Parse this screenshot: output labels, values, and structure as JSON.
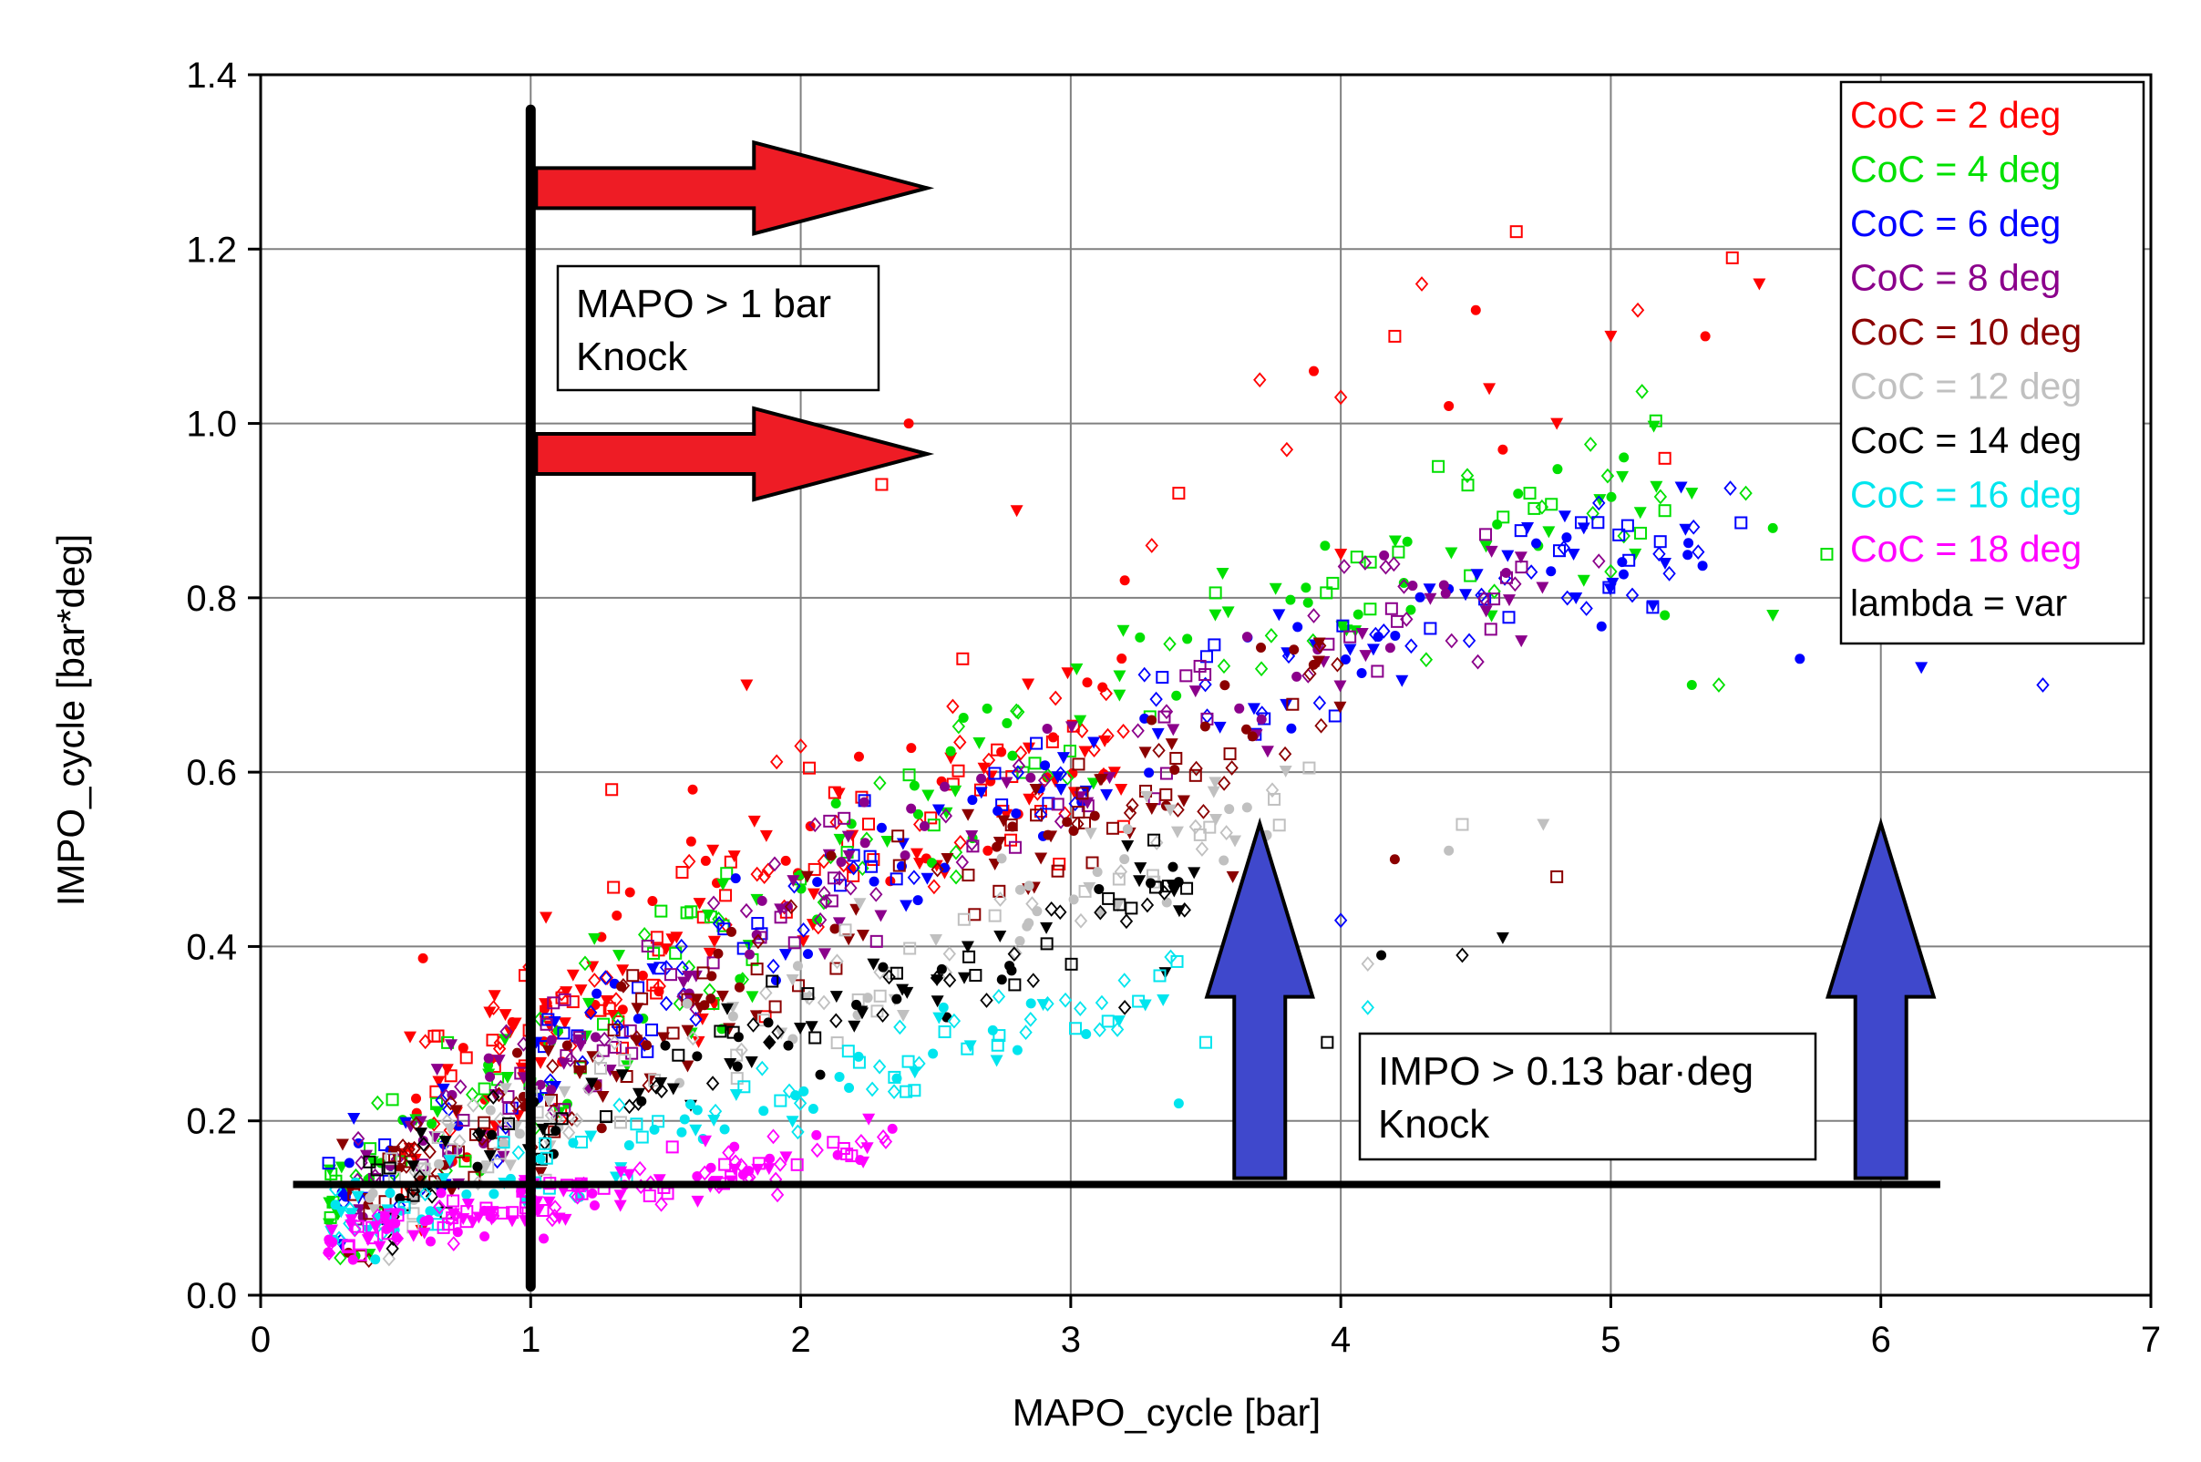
{
  "chart_data": {
    "type": "scatter",
    "xlabel": "MAPO_cycle [bar]",
    "ylabel": "IMPO_cycle [bar*deg]",
    "xlim": [
      0,
      7
    ],
    "ylim": [
      0,
      1.4
    ],
    "xticks": [
      "0",
      "1",
      "2",
      "3",
      "4",
      "5",
      "6",
      "7"
    ],
    "yticks": [
      "0.0",
      "0.2",
      "0.4",
      "0.6",
      "0.8",
      "1.0",
      "1.2",
      "1.4"
    ],
    "grid": true,
    "legend_position": "top-right",
    "series": [
      {
        "name": "CoC = 2 deg",
        "color": "#ff0000",
        "seed": 11,
        "n": 210,
        "points": [
          [
            2.4,
            1.0
          ],
          [
            3.4,
            0.92
          ],
          [
            4.0,
            0.85
          ],
          [
            4.3,
            1.16
          ],
          [
            4.5,
            1.13
          ],
          [
            4.65,
            1.22
          ],
          [
            5.0,
            1.1
          ],
          [
            5.1,
            1.13
          ],
          [
            5.35,
            1.1
          ],
          [
            5.45,
            1.19
          ],
          [
            5.55,
            1.16
          ],
          [
            3.7,
            1.05
          ],
          [
            3.9,
            1.06
          ],
          [
            4.2,
            1.1
          ],
          [
            4.55,
            1.04
          ],
          [
            4.0,
            1.03
          ],
          [
            4.4,
            1.02
          ],
          [
            5.2,
            0.96
          ],
          [
            4.8,
            1.0
          ],
          [
            3.8,
            0.97
          ],
          [
            4.6,
            0.97
          ],
          [
            2.3,
            0.93
          ],
          [
            2.8,
            0.9
          ],
          [
            3.3,
            0.86
          ],
          [
            3.2,
            0.82
          ],
          [
            2.6,
            0.73
          ],
          [
            1.8,
            0.7
          ],
          [
            2.0,
            0.63
          ],
          [
            1.6,
            0.58
          ],
          [
            1.3,
            0.58
          ]
        ]
      },
      {
        "name": "CoC = 4 deg",
        "color": "#00e000",
        "seed": 22,
        "n": 200,
        "points": [
          [
            5.2,
            0.9
          ],
          [
            5.3,
            0.92
          ],
          [
            5.5,
            0.92
          ],
          [
            5.6,
            0.88
          ],
          [
            5.8,
            0.85
          ],
          [
            5.6,
            0.78
          ],
          [
            5.4,
            0.7
          ],
          [
            5.3,
            0.7
          ],
          [
            4.7,
            0.92
          ],
          [
            4.9,
            0.82
          ],
          [
            5.0,
            0.83
          ],
          [
            5.2,
            0.78
          ]
        ]
      },
      {
        "name": "CoC = 6 deg",
        "color": "#0000ff",
        "seed": 33,
        "n": 200,
        "points": [
          [
            6.15,
            0.72
          ],
          [
            6.6,
            0.7
          ],
          [
            5.7,
            0.73
          ],
          [
            5.9,
            0.82
          ],
          [
            4.9,
            0.88
          ],
          [
            4.0,
            0.43
          ],
          [
            4.4,
            0.81
          ]
        ]
      },
      {
        "name": "CoC = 8 deg",
        "color": "#8b008b",
        "seed": 44,
        "n": 190,
        "points": []
      },
      {
        "name": "CoC = 10 deg",
        "color": "#8b0000",
        "seed": 55,
        "n": 170,
        "points": [
          [
            4.2,
            0.5
          ],
          [
            4.8,
            0.48
          ],
          [
            3.6,
            0.48
          ]
        ]
      },
      {
        "name": "CoC = 12 deg",
        "color": "#c0c0c0",
        "seed": 66,
        "n": 140,
        "points": [
          [
            4.45,
            0.54
          ],
          [
            4.75,
            0.54
          ],
          [
            4.1,
            0.38
          ],
          [
            4.4,
            0.51
          ]
        ]
      },
      {
        "name": "CoC = 14 deg",
        "color": "#000000",
        "seed": 77,
        "n": 130,
        "points": [
          [
            4.6,
            0.41
          ],
          [
            4.45,
            0.39
          ],
          [
            4.15,
            0.39
          ],
          [
            3.95,
            0.29
          ],
          [
            3.35,
            0.37
          ],
          [
            3.2,
            0.33
          ]
        ]
      },
      {
        "name": "CoC = 16 deg",
        "color": "#00e5ee",
        "seed": 88,
        "n": 130,
        "points": [
          [
            4.1,
            0.33
          ],
          [
            3.4,
            0.22
          ],
          [
            3.5,
            0.29
          ]
        ]
      },
      {
        "name": "CoC = 18 deg",
        "color": "#ff00ff",
        "seed": 99,
        "n": 160,
        "points": []
      },
      {
        "name": "lambda = var",
        "color": "#000000",
        "marker_note": "legend entry only",
        "seed": 0,
        "n": 0,
        "points": []
      }
    ],
    "reference_lines": [
      {
        "type": "vertical",
        "x": 1.0,
        "y_range": [
          0.01,
          1.36
        ]
      },
      {
        "type": "horizontal",
        "y": 0.127,
        "x_range": [
          0.12,
          6.22
        ]
      }
    ],
    "arrows": [
      {
        "direction": "right",
        "color": "#ee1c25",
        "x_from": 1.0,
        "x_to": 2.35,
        "y": 1.27
      },
      {
        "direction": "right",
        "color": "#ee1c25",
        "x_from": 1.0,
        "x_to": 2.35,
        "y": 0.965
      },
      {
        "direction": "up",
        "color": "#3f48cc",
        "x": 3.7,
        "y_from": 0.13,
        "y_to": 0.52
      },
      {
        "direction": "up",
        "color": "#3f48cc",
        "x": 6.0,
        "y_from": 0.13,
        "y_to": 0.52
      }
    ],
    "annotations": [
      {
        "line1": "MAPO > 1 bar",
        "line2": "Knock"
      },
      {
        "line1": "IMPO > 0.13 bar·deg",
        "line2": "Knock"
      }
    ]
  }
}
